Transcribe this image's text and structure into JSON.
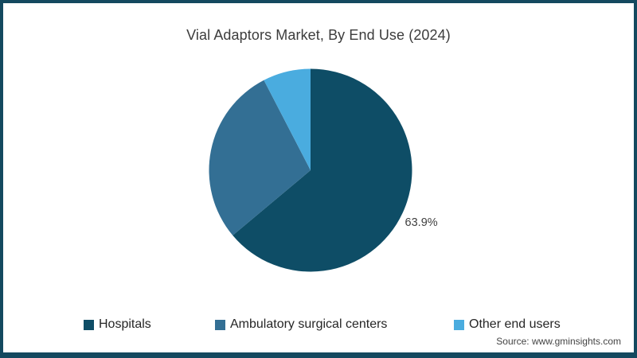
{
  "title": "Vial Adaptors Market, By End Use (2024)",
  "source_note": "Source: www.gminsights.com",
  "accent_border_color": "#14495F",
  "chart_data": {
    "type": "pie",
    "title": "Vial Adaptors Market, By End Use (2024)",
    "categories": [
      "Hospitals",
      "Ambulatory surgical centers",
      "Other end users"
    ],
    "values": [
      63.9,
      28.5,
      7.6
    ],
    "colors": [
      "#0E4D66",
      "#336F94",
      "#4AACDF"
    ],
    "data_labels": [
      "63.9%",
      "",
      ""
    ],
    "start_angle_deg": 0,
    "direction": "clockwise",
    "legend_position": "bottom"
  },
  "legend": {
    "items": [
      {
        "label": "Hospitals"
      },
      {
        "label": "Ambulatory surgical centers"
      },
      {
        "label": "Other end users"
      }
    ]
  }
}
